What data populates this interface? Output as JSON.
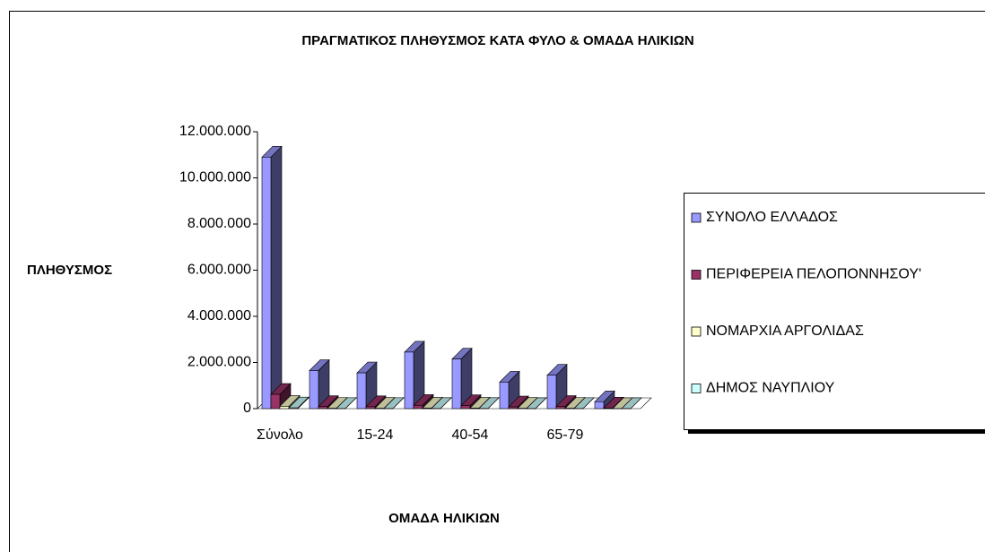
{
  "chart_data": {
    "type": "bar3d",
    "title": "ΠΡΑΓΜΑΤΙΚΟΣ ΠΛΗΘΥΣΜΟΣ ΚΑΤΑ ΦΥΛΟ & ΟΜΑΔΑ ΗΛΙΚΙΩΝ",
    "y_label": "ΠΛΗΘΥΣΜΟΣ",
    "x_label": "ΟΜΑΔΑ ΗΛΙΚΙΩΝ",
    "categories": [
      "Σύνολο",
      null,
      "15-24",
      null,
      "40-54",
      null,
      "65-79",
      null
    ],
    "series": [
      {
        "name": "ΣΥΝΟΛΟ ΕΛΛΑΔΟΣ",
        "color": "#9999ff",
        "values": [
          10900000,
          1650000,
          1550000,
          2450000,
          2150000,
          1150000,
          1450000,
          300000
        ]
      },
      {
        "name": "ΠΕΡΙΦΕΡΕΙΑ ΠΕΛΟΠΟΝΝΗΣΟΥ'",
        "color": "#993366",
        "values": [
          620000,
          90000,
          85000,
          140000,
          130000,
          75000,
          95000,
          25000
        ]
      },
      {
        "name": "ΝΟΜΑΡΧΙΑ ΑΡΓΟΛΙΔΑΣ",
        "color": "#ffffcc",
        "values": [
          100000,
          15000,
          14000,
          22000,
          21000,
          12000,
          15000,
          4000
        ]
      },
      {
        "name": "ΔΗΜΟΣ ΝΑΥΠΛΙΟΥ",
        "color": "#ccffff",
        "values": [
          33000,
          5000,
          5000,
          7000,
          7000,
          4000,
          5000,
          1000
        ]
      }
    ],
    "ylim": [
      0,
      12000000
    ],
    "yticks": [
      {
        "value": 0,
        "label": "0"
      },
      {
        "value": 2000000,
        "label": "2.000.000"
      },
      {
        "value": 4000000,
        "label": "4.000.000"
      },
      {
        "value": 6000000,
        "label": "6.000.000"
      },
      {
        "value": 8000000,
        "label": "8.000.000"
      },
      {
        "value": 10000000,
        "label": "10.000.000"
      },
      {
        "value": 12000000,
        "label": "12.000.000"
      }
    ]
  }
}
